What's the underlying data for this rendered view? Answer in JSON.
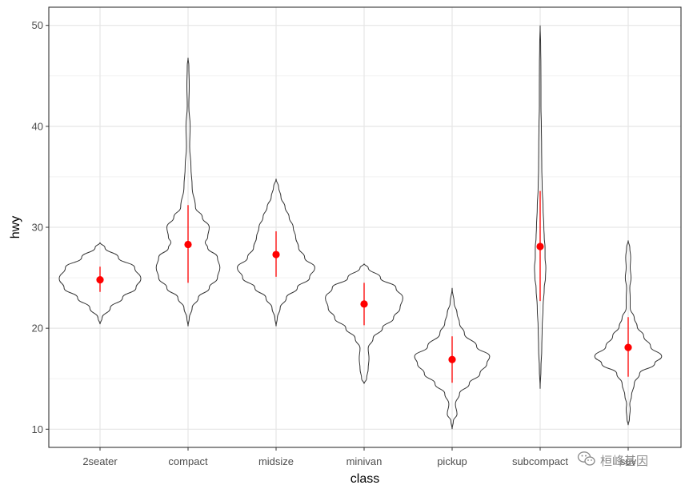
{
  "chart_data": {
    "type": "violin",
    "xlabel": "class",
    "ylabel": "hwy",
    "ylim": [
      8.2,
      51.8
    ],
    "y_ticks": [
      10,
      20,
      30,
      40,
      50
    ],
    "y_minor_ticks": [
      15,
      25,
      35,
      45
    ],
    "grid": true,
    "colors": {
      "outline": "#333333",
      "summary": "#ff0000",
      "grid_major": "#e6e6e6",
      "grid_minor": "#f2f2f2",
      "panel_border": "#333333"
    },
    "categories": [
      "2seater",
      "compact",
      "midsize",
      "minivan",
      "pickup",
      "subcompact",
      "suv"
    ],
    "violins": [
      {
        "name": "2seater",
        "mean": 24.8,
        "lower": 23.6,
        "upper": 26.1,
        "profile": [
          [
            20.4,
            0
          ],
          [
            21,
            0.05
          ],
          [
            22,
            0.25
          ],
          [
            23,
            0.55
          ],
          [
            24,
            0.88
          ],
          [
            24.9,
            1.0
          ],
          [
            26,
            0.85
          ],
          [
            27,
            0.45
          ],
          [
            28,
            0.12
          ],
          [
            28.5,
            0
          ]
        ]
      },
      {
        "name": "compact",
        "mean": 28.3,
        "lower": 24.5,
        "upper": 32.2,
        "profile": [
          [
            20.2,
            0
          ],
          [
            21,
            0.03
          ],
          [
            22,
            0.1
          ],
          [
            23,
            0.25
          ],
          [
            24,
            0.52
          ],
          [
            25,
            0.72
          ],
          [
            26,
            0.78
          ],
          [
            27,
            0.72
          ],
          [
            28,
            0.48
          ],
          [
            28.5,
            0.42
          ],
          [
            29,
            0.48
          ],
          [
            30,
            0.52
          ],
          [
            31,
            0.35
          ],
          [
            32,
            0.18
          ],
          [
            34,
            0.1
          ],
          [
            36,
            0.07
          ],
          [
            38,
            0.04
          ],
          [
            40,
            0.05
          ],
          [
            42,
            0.02
          ],
          [
            44,
            0.03
          ],
          [
            46,
            0.02
          ],
          [
            46.8,
            0
          ]
        ]
      },
      {
        "name": "midsize",
        "mean": 27.3,
        "lower": 25.1,
        "upper": 29.6,
        "profile": [
          [
            20.2,
            0
          ],
          [
            21,
            0.03
          ],
          [
            22,
            0.1
          ],
          [
            23,
            0.25
          ],
          [
            24,
            0.52
          ],
          [
            25,
            0.82
          ],
          [
            26,
            0.95
          ],
          [
            27,
            0.7
          ],
          [
            28,
            0.55
          ],
          [
            29,
            0.48
          ],
          [
            30,
            0.42
          ],
          [
            31,
            0.32
          ],
          [
            32,
            0.22
          ],
          [
            33,
            0.12
          ],
          [
            34,
            0.06
          ],
          [
            34.8,
            0
          ]
        ]
      },
      {
        "name": "minivan",
        "mean": 22.4,
        "lower": 20.3,
        "upper": 24.5,
        "profile": [
          [
            14.5,
            0
          ],
          [
            15,
            0.06
          ],
          [
            16,
            0.1
          ],
          [
            17,
            0.12
          ],
          [
            18,
            0.1
          ],
          [
            19,
            0.22
          ],
          [
            20,
            0.45
          ],
          [
            21,
            0.72
          ],
          [
            22,
            0.88
          ],
          [
            23,
            0.95
          ],
          [
            24,
            0.78
          ],
          [
            25,
            0.4
          ],
          [
            26,
            0.1
          ],
          [
            26.4,
            0
          ]
        ]
      },
      {
        "name": "pickup",
        "mean": 16.9,
        "lower": 14.6,
        "upper": 19.2,
        "profile": [
          [
            10,
            0
          ],
          [
            10.8,
            0.03
          ],
          [
            11.5,
            0.12
          ],
          [
            12.5,
            0.08
          ],
          [
            13.5,
            0.18
          ],
          [
            14.5,
            0.42
          ],
          [
            15.5,
            0.68
          ],
          [
            16.5,
            0.85
          ],
          [
            17.2,
            0.92
          ],
          [
            18.2,
            0.6
          ],
          [
            19.5,
            0.3
          ],
          [
            20.5,
            0.18
          ],
          [
            21.5,
            0.12
          ],
          [
            22.5,
            0.05
          ],
          [
            24,
            0
          ]
        ]
      },
      {
        "name": "subcompact",
        "mean": 28.1,
        "lower": 22.7,
        "upper": 33.6,
        "profile": [
          [
            14,
            0
          ],
          [
            16,
            0.02
          ],
          [
            18,
            0.04
          ],
          [
            20,
            0.05
          ],
          [
            22,
            0.07
          ],
          [
            24,
            0.1
          ],
          [
            25,
            0.13
          ],
          [
            26,
            0.14
          ],
          [
            27,
            0.12
          ],
          [
            28,
            0.12
          ],
          [
            29,
            0.1
          ],
          [
            30,
            0.09
          ],
          [
            32,
            0.07
          ],
          [
            34,
            0.05
          ],
          [
            36,
            0.04
          ],
          [
            38,
            0.035
          ],
          [
            40,
            0.03
          ],
          [
            42,
            0.02
          ],
          [
            44,
            0.02
          ],
          [
            46,
            0.018
          ],
          [
            48,
            0.012
          ],
          [
            50,
            0
          ]
        ]
      },
      {
        "name": "suv",
        "mean": 18.1,
        "lower": 15.2,
        "upper": 21.1,
        "profile": [
          [
            10.4,
            0
          ],
          [
            11,
            0.03
          ],
          [
            12,
            0.05
          ],
          [
            12.5,
            0.04
          ],
          [
            13.3,
            0.08
          ],
          [
            14.5,
            0.15
          ],
          [
            15.5,
            0.28
          ],
          [
            16.5,
            0.65
          ],
          [
            17.2,
            0.82
          ],
          [
            18.2,
            0.55
          ],
          [
            19.2,
            0.38
          ],
          [
            20.2,
            0.22
          ],
          [
            21,
            0.15
          ],
          [
            22,
            0.05
          ],
          [
            23,
            0.05
          ],
          [
            24,
            0.04
          ],
          [
            25,
            0.07
          ],
          [
            26,
            0.05
          ],
          [
            27,
            0.06
          ],
          [
            28,
            0.04
          ],
          [
            28.7,
            0
          ]
        ]
      }
    ]
  },
  "watermark": {
    "icon": "wechat-icon",
    "text": "桓峰基因"
  }
}
